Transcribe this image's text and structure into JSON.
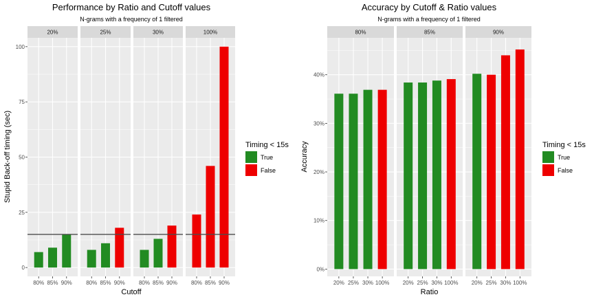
{
  "colors": {
    "true": "#228B22",
    "false": "#EE0000",
    "panel": "#EBEBEB",
    "strip": "#D9D9D9",
    "grid": "#FFFFFF",
    "threshold": "#4D4D4D"
  },
  "chart_data": [
    {
      "type": "bar",
      "title": "Performance by Ratio and Cutoff values",
      "subtitle": "N-grams with a frequency of 1 filtered",
      "xlabel": "Cutoff",
      "ylabel": "Stupid Back-off timing (sec)",
      "ylim": [
        -4,
        104
      ],
      "yticks": [
        0,
        25,
        50,
        75,
        100
      ],
      "ytick_labels": [
        "0",
        "25",
        "50",
        "75",
        "100"
      ],
      "threshold": 15,
      "categories": [
        "80%",
        "85%",
        "90%"
      ],
      "facets": [
        {
          "label": "20%",
          "values": [
            7,
            9,
            15
          ],
          "fast": [
            true,
            true,
            true
          ]
        },
        {
          "label": "25%",
          "values": [
            8,
            11,
            18
          ],
          "fast": [
            true,
            true,
            false
          ]
        },
        {
          "label": "30%",
          "values": [
            8,
            13,
            19
          ],
          "fast": [
            true,
            true,
            false
          ]
        },
        {
          "label": "100%",
          "values": [
            24,
            46,
            100
          ],
          "fast": [
            false,
            false,
            false
          ]
        }
      ],
      "legend": {
        "title": "Timing < 15s",
        "entries": [
          "True",
          "False"
        ]
      }
    },
    {
      "type": "bar",
      "title": "Accuracy by Cutoff & Ratio values",
      "subtitle": "N-grams with a frequency of 1 filtered",
      "xlabel": "Ratio",
      "ylabel": "Accuracy",
      "ylim": [
        -0.015,
        0.476
      ],
      "yticks": [
        0,
        0.1,
        0.2,
        0.3,
        0.4
      ],
      "ytick_labels": [
        "0%",
        "10%",
        "20%",
        "30%",
        "40%"
      ],
      "categories": [
        "20%",
        "25%",
        "30%",
        "100%"
      ],
      "facets": [
        {
          "label": "80%",
          "values": [
            0.361,
            0.361,
            0.369,
            0.369
          ],
          "fast": [
            true,
            true,
            true,
            false
          ]
        },
        {
          "label": "85%",
          "values": [
            0.384,
            0.384,
            0.388,
            0.391
          ],
          "fast": [
            true,
            true,
            true,
            false
          ]
        },
        {
          "label": "90%",
          "values": [
            0.402,
            0.4,
            0.44,
            0.452
          ],
          "fast": [
            true,
            false,
            false,
            false
          ]
        }
      ],
      "legend": {
        "title": "Timing < 15s",
        "entries": [
          "True",
          "False"
        ]
      }
    }
  ]
}
